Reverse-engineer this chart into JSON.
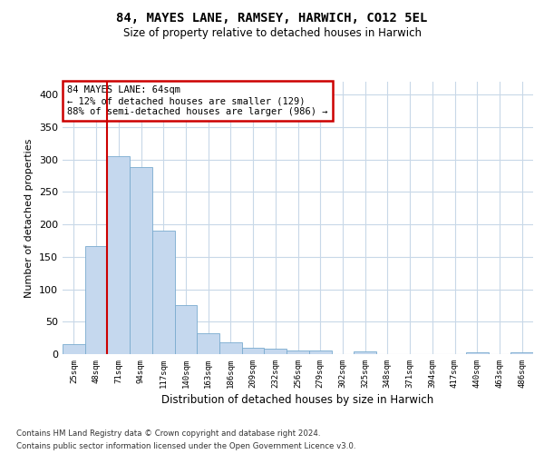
{
  "title_line1": "84, MAYES LANE, RAMSEY, HARWICH, CO12 5EL",
  "title_line2": "Size of property relative to detached houses in Harwich",
  "xlabel": "Distribution of detached houses by size in Harwich",
  "ylabel": "Number of detached properties",
  "footer_line1": "Contains HM Land Registry data © Crown copyright and database right 2024.",
  "footer_line2": "Contains public sector information licensed under the Open Government Licence v3.0.",
  "annotation_line1": "84 MAYES LANE: 64sqm",
  "annotation_line2": "← 12% of detached houses are smaller (129)",
  "annotation_line3": "88% of semi-detached houses are larger (986) →",
  "property_bin_index": 2,
  "categories": [
    "25sqm",
    "48sqm",
    "71sqm",
    "94sqm",
    "117sqm",
    "140sqm",
    "163sqm",
    "186sqm",
    "209sqm",
    "232sqm",
    "256sqm",
    "279sqm",
    "302sqm",
    "325sqm",
    "348sqm",
    "371sqm",
    "394sqm",
    "417sqm",
    "440sqm",
    "463sqm",
    "486sqm"
  ],
  "bar_values": [
    15,
    167,
    305,
    288,
    190,
    75,
    32,
    18,
    10,
    8,
    5,
    5,
    0,
    4,
    0,
    0,
    0,
    0,
    3,
    0,
    3
  ],
  "bar_color": "#c5d8ee",
  "bar_edge_color": "#7aabcf",
  "redline_color": "#cc0000",
  "annotation_box_color": "#cc0000",
  "ylim": [
    0,
    420
  ],
  "yticks": [
    0,
    50,
    100,
    150,
    200,
    250,
    300,
    350,
    400
  ],
  "background_color": "#ffffff",
  "grid_color": "#c8d8e8"
}
